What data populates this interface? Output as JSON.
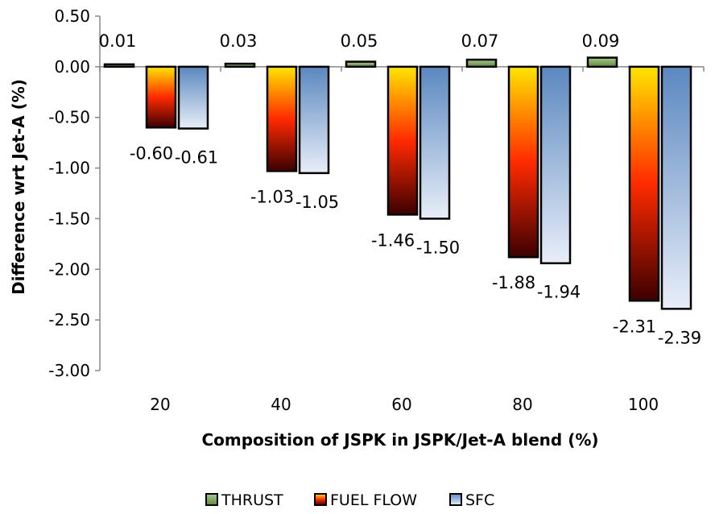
{
  "chart_data": {
    "type": "bar",
    "title": "",
    "xlabel": "Composition of JSPK in JSPK/Jet-A blend (%)",
    "ylabel": "Difference wrt Jet-A (%)",
    "categories": [
      "20",
      "40",
      "60",
      "80",
      "100"
    ],
    "ylim": [
      -3.0,
      0.5
    ],
    "yticks": [
      "0.50",
      "0.00",
      "-0.50",
      "-1.00",
      "-1.50",
      "-2.00",
      "-2.50",
      "-3.00"
    ],
    "grid": false,
    "legend_position": "bottom",
    "series": [
      {
        "name": "THRUST",
        "values": [
          0.01,
          0.03,
          0.05,
          0.07,
          0.09
        ],
        "labels": [
          "0.01",
          "0.03",
          "0.05",
          "0.07",
          "0.09"
        ]
      },
      {
        "name": "FUEL FLOW",
        "values": [
          -0.6,
          -1.03,
          -1.46,
          -1.88,
          -2.31
        ],
        "labels": [
          "-0.60",
          "-1.03",
          "-1.46",
          "-1.88",
          "-2.31"
        ]
      },
      {
        "name": "SFC",
        "values": [
          -0.61,
          -1.05,
          -1.5,
          -1.94,
          -2.39
        ],
        "labels": [
          "-0.61",
          "-1.05",
          "-1.50",
          "-1.94",
          "-2.39"
        ]
      }
    ],
    "colors": {
      "thrust_top": "#a9c98a",
      "thrust_bottom": "#5f8a3c",
      "fuel_top": "#ffe500",
      "fuel_mid": "#ff2a00",
      "fuel_bottom": "#3d0000",
      "sfc_top": "#5b88c0",
      "sfc_bottom": "#e8eef8"
    }
  }
}
